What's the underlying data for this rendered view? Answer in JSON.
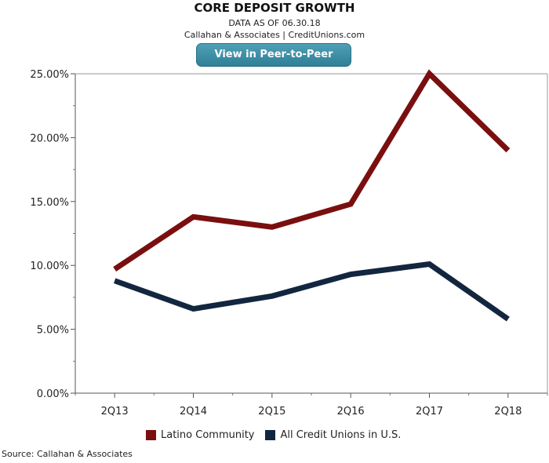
{
  "header": {
    "title": "CORE DEPOSIT GROWTH",
    "date_line": "DATA AS OF 06.30.18",
    "credit_line": "Callahan & Associates | CreditUnions.com",
    "button_label": "View in Peer-to-Peer"
  },
  "footer": {
    "source": "Source: Callahan & Associates"
  },
  "chart_data": {
    "type": "line",
    "title": "CORE DEPOSIT GROWTH",
    "categories": [
      "2Q13",
      "2Q14",
      "2Q15",
      "2Q16",
      "2Q17",
      "2Q18"
    ],
    "y_ticks": [
      "0.00%",
      "5.00%",
      "10.00%",
      "15.00%",
      "20.00%",
      "25.00%"
    ],
    "ylim": [
      0,
      25
    ],
    "grid": false,
    "legend_position": "bottom",
    "series": [
      {
        "name": "Latino Community",
        "color": "#7a0f0f",
        "values": [
          9.7,
          13.8,
          13.0,
          14.8,
          25.0,
          19.0
        ]
      },
      {
        "name": "All Credit Unions in U.S.",
        "color": "#13263f",
        "values": [
          8.8,
          6.6,
          7.6,
          9.3,
          10.1,
          5.8
        ]
      }
    ]
  }
}
